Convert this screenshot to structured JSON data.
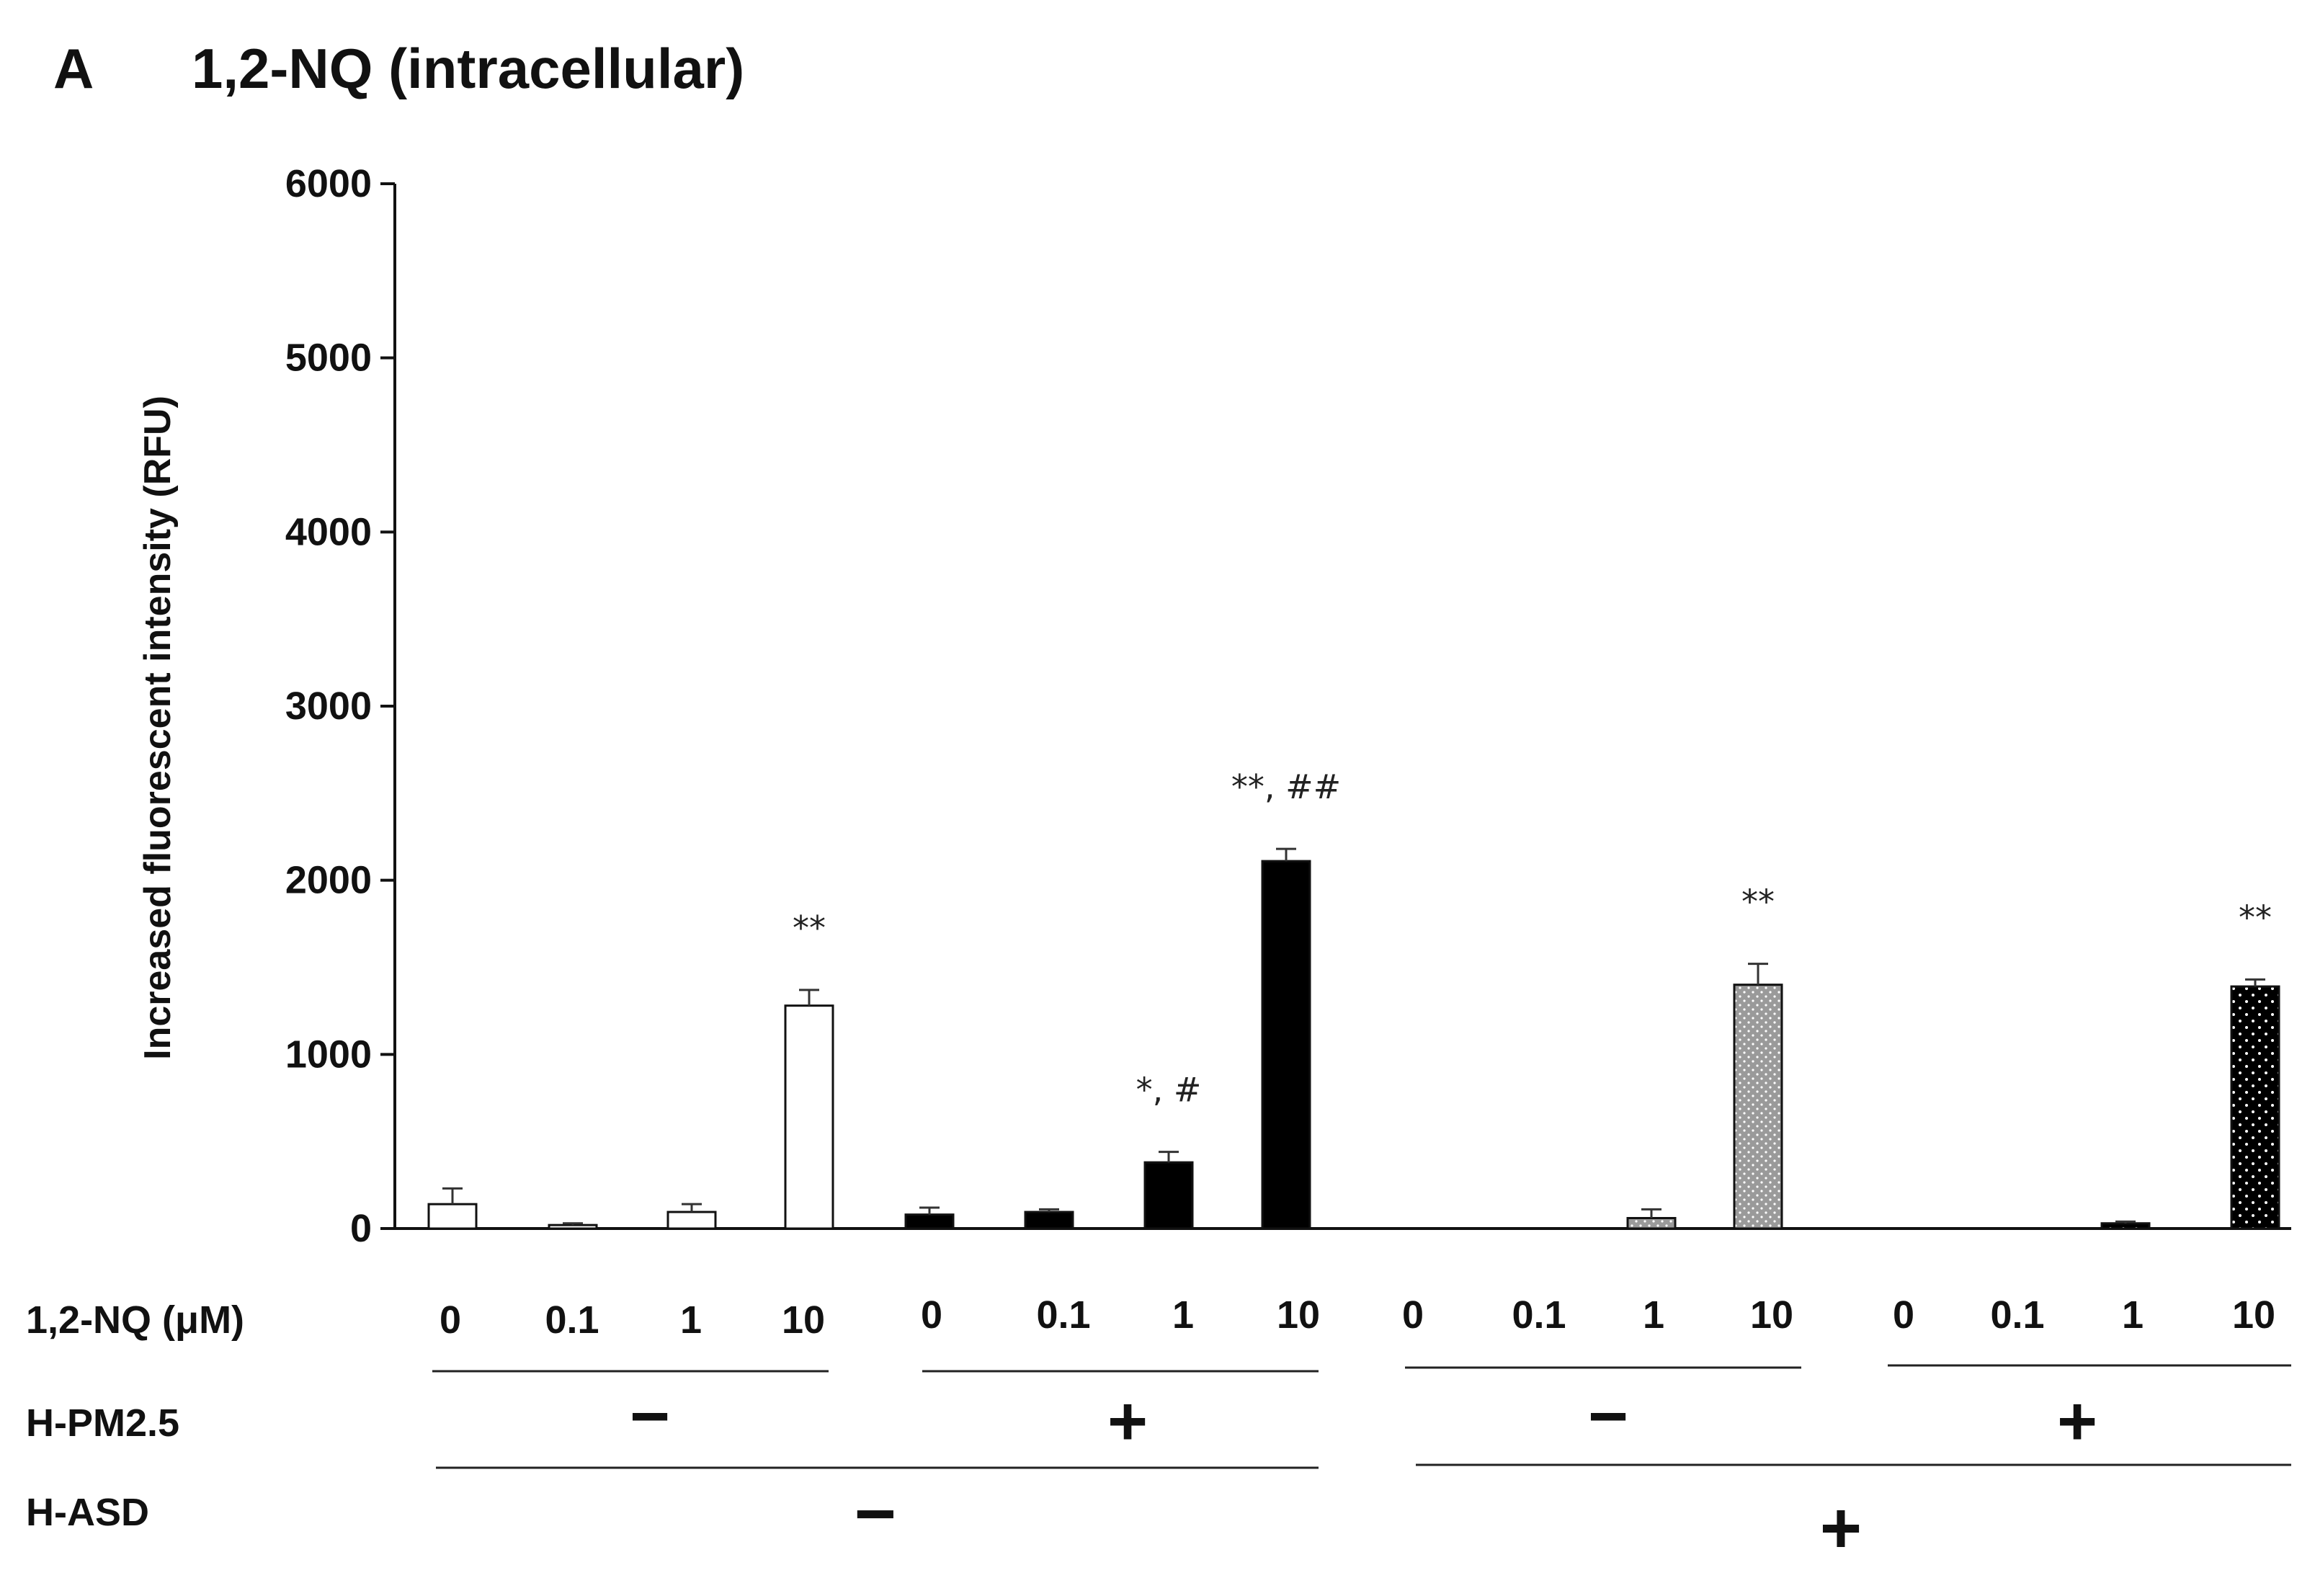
{
  "chart_data": {
    "type": "bar",
    "panel_letter": "A",
    "title": "1,2-NQ (intracellular)",
    "ylabel": "Increased fluorescent intensity (RFU)",
    "ylim": [
      0,
      6000
    ],
    "yticks": [
      0,
      1000,
      2000,
      3000,
      4000,
      5000,
      6000
    ],
    "grid": false,
    "legend": "none",
    "row_labels": {
      "nq": "1,2-NQ (μM)",
      "pm": "H-PM2.5",
      "asd": "H-ASD"
    },
    "groups": [
      {
        "fill": "white",
        "pm": "−",
        "bars": [
          {
            "category": "0",
            "value": 140,
            "error": 90,
            "annotation": ""
          },
          {
            "category": "0.1",
            "value": 20,
            "error": 10,
            "annotation": ""
          },
          {
            "category": "1",
            "value": 95,
            "error": 45,
            "annotation": ""
          },
          {
            "category": "10",
            "value": 1280,
            "error": 90,
            "annotation": "**"
          }
        ]
      },
      {
        "fill": "black",
        "pm": "+",
        "bars": [
          {
            "category": "0",
            "value": 80,
            "error": 40,
            "annotation": ""
          },
          {
            "category": "0.1",
            "value": 95,
            "error": 15,
            "annotation": ""
          },
          {
            "category": "1",
            "value": 380,
            "error": 60,
            "annotation": "*, #"
          },
          {
            "category": "10",
            "value": 2110,
            "error": 70,
            "annotation": "**, ##"
          }
        ]
      },
      {
        "fill": "gray-dotted",
        "pm": "−",
        "bars": [
          {
            "category": "0",
            "value": 0,
            "error": 0,
            "annotation": ""
          },
          {
            "category": "0.1",
            "value": 0,
            "error": 0,
            "annotation": ""
          },
          {
            "category": "1",
            "value": 60,
            "error": 50,
            "annotation": ""
          },
          {
            "category": "10",
            "value": 1400,
            "error": 120,
            "annotation": "**"
          }
        ]
      },
      {
        "fill": "black-dotted",
        "pm": "+",
        "bars": [
          {
            "category": "0",
            "value": 0,
            "error": 0,
            "annotation": ""
          },
          {
            "category": "0.1",
            "value": 0,
            "error": 0,
            "annotation": ""
          },
          {
            "category": "1",
            "value": 30,
            "error": 10,
            "annotation": ""
          },
          {
            "category": "10",
            "value": 1390,
            "error": 40,
            "annotation": "**"
          }
        ]
      }
    ],
    "asd_signs": [
      "−",
      "+"
    ]
  }
}
